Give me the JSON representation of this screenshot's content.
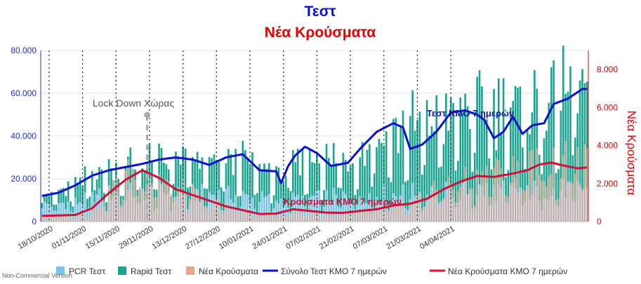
{
  "colors": {
    "pcr": "#7cc3ea",
    "rapid": "#1aa38f",
    "cases": "#e8a58c",
    "tests_ma": "#0a10c8",
    "cases_ma": "#d0103a",
    "left_axis": "#1f2fd0",
    "right_axis": "#e00000"
  },
  "chart_data": {
    "type": "bar",
    "title": "Τεστ",
    "subtitle": "Νέα Κρούσματα",
    "ylabel_right": "Νέα Κρούσματα",
    "ylim_left": [
      0,
      80000
    ],
    "ylim_right": [
      0,
      9000
    ],
    "left_ticks": [
      "0",
      "20.000",
      "40.000",
      "60.000",
      "80.000"
    ],
    "right_ticks": [
      "0",
      "2.000",
      "4.000",
      "6.000",
      "8.000"
    ],
    "x_ticks": [
      "18/10/2020",
      "01/11/2020",
      "15/11/2020",
      "29/11/2020",
      "13/12/2020",
      "27/12/2020",
      "10/01/2021",
      "24/01/2021",
      "07/02/2021",
      "21/02/2021",
      "07/03/2021",
      "21/03/2021",
      "04/04/2021"
    ],
    "legend": [
      "PCR Τεστ",
      "Rapid Τεστ",
      "Νέα Κρούσματα",
      "Σύνολο Τεστ ΚΜΟ 7 ημερών",
      "Νέα Κρούσματα ΚΜΟ 7 ημερών"
    ],
    "annotations": {
      "lockdown": "Lock Down Χώρας",
      "tests_ma_label": "Τεστ ΚΜΟ 7 ημερών",
      "cases_ma_label": "Κρούσματα ΚΜΟ 7 ημερών"
    },
    "credit": "Non-Commercial Version",
    "series": [
      {
        "name": "Σύνολο Τεστ ΚΜΟ 7 ημερών",
        "axis": "left",
        "points": [
          [
            0,
            12000
          ],
          [
            7,
            13500
          ],
          [
            14,
            17000
          ],
          [
            21,
            21500
          ],
          [
            28,
            24000
          ],
          [
            35,
            25500
          ],
          [
            42,
            27000
          ],
          [
            49,
            29000
          ],
          [
            56,
            30000
          ],
          [
            63,
            29000
          ],
          [
            70,
            26500
          ],
          [
            77,
            30000
          ],
          [
            84,
            31500
          ],
          [
            91,
            24000
          ],
          [
            98,
            23500
          ],
          [
            100,
            18000
          ],
          [
            103,
            26000
          ],
          [
            106,
            31000
          ],
          [
            110,
            35000
          ],
          [
            115,
            32000
          ],
          [
            121,
            26000
          ],
          [
            128,
            27500
          ],
          [
            133,
            34000
          ],
          [
            140,
            42000
          ],
          [
            147,
            46000
          ],
          [
            151,
            44000
          ],
          [
            154,
            34000
          ],
          [
            159,
            36000
          ],
          [
            165,
            42000
          ],
          [
            171,
            51000
          ],
          [
            177,
            52000
          ],
          [
            182,
            50000
          ],
          [
            185,
            47500
          ],
          [
            189,
            39000
          ],
          [
            193,
            42000
          ],
          [
            197,
            49000
          ],
          [
            201,
            41000
          ],
          [
            205,
            45000
          ],
          [
            210,
            46000
          ],
          [
            214,
            55000
          ],
          [
            220,
            57500
          ],
          [
            226,
            62000
          ]
        ]
      },
      {
        "name": "Νέα Κρούσματα ΚΜΟ 7 ημερών",
        "axis": "right",
        "points": [
          [
            0,
            300
          ],
          [
            14,
            350
          ],
          [
            21,
            700
          ],
          [
            28,
            1500
          ],
          [
            35,
            2200
          ],
          [
            42,
            2700
          ],
          [
            49,
            2300
          ],
          [
            56,
            1700
          ],
          [
            63,
            1400
          ],
          [
            70,
            1100
          ],
          [
            77,
            800
          ],
          [
            84,
            600
          ],
          [
            91,
            400
          ],
          [
            98,
            420
          ],
          [
            105,
            650
          ],
          [
            112,
            560
          ],
          [
            119,
            470
          ],
          [
            126,
            460
          ],
          [
            133,
            560
          ],
          [
            140,
            650
          ],
          [
            147,
            850
          ],
          [
            154,
            940
          ],
          [
            161,
            1200
          ],
          [
            168,
            1700
          ],
          [
            175,
            2100
          ],
          [
            182,
            2400
          ],
          [
            189,
            2350
          ],
          [
            196,
            2500
          ],
          [
            203,
            2700
          ],
          [
            208,
            3000
          ],
          [
            213,
            3100
          ],
          [
            220,
            2900
          ],
          [
            224,
            2800
          ],
          [
            228,
            2850
          ]
        ]
      }
    ],
    "bar_series": [
      {
        "name": "PCR Τεστ",
        "axis": "left",
        "points": [
          [
            0,
            8000
          ],
          [
            14,
            9000
          ],
          [
            28,
            13000
          ],
          [
            42,
            14000
          ],
          [
            56,
            13500
          ],
          [
            70,
            13000
          ],
          [
            84,
            12000
          ],
          [
            98,
            10000
          ],
          [
            112,
            11000
          ],
          [
            126,
            12000
          ],
          [
            140,
            13000
          ],
          [
            154,
            13500
          ],
          [
            168,
            14000
          ],
          [
            182,
            15000
          ],
          [
            196,
            14500
          ],
          [
            210,
            15000
          ],
          [
            228,
            15500
          ]
        ]
      },
      {
        "name": "Rapid Τεστ",
        "axis": "left",
        "points": [
          [
            0,
            4000
          ],
          [
            14,
            8000
          ],
          [
            28,
            12000
          ],
          [
            42,
            14000
          ],
          [
            56,
            16000
          ],
          [
            70,
            15000
          ],
          [
            84,
            17000
          ],
          [
            98,
            12000
          ],
          [
            112,
            18000
          ],
          [
            126,
            17000
          ],
          [
            140,
            28000
          ],
          [
            154,
            32000
          ],
          [
            168,
            35000
          ],
          [
            182,
            40000
          ],
          [
            196,
            38000
          ],
          [
            210,
            42000
          ],
          [
            228,
            48000
          ]
        ]
      },
      {
        "name": "Νέα Κρούσματα",
        "axis": "right",
        "points": [
          [
            0,
            300
          ],
          [
            14,
            400
          ],
          [
            21,
            700
          ],
          [
            28,
            1500
          ],
          [
            35,
            2300
          ],
          [
            42,
            2700
          ],
          [
            49,
            2300
          ],
          [
            56,
            1700
          ],
          [
            63,
            1400
          ],
          [
            70,
            1000
          ],
          [
            77,
            800
          ],
          [
            84,
            600
          ],
          [
            91,
            400
          ],
          [
            98,
            450
          ],
          [
            112,
            550
          ],
          [
            126,
            450
          ],
          [
            140,
            650
          ],
          [
            154,
            950
          ],
          [
            168,
            1700
          ],
          [
            182,
            2400
          ],
          [
            196,
            2500
          ],
          [
            210,
            3000
          ],
          [
            228,
            2850
          ]
        ]
      }
    ]
  }
}
